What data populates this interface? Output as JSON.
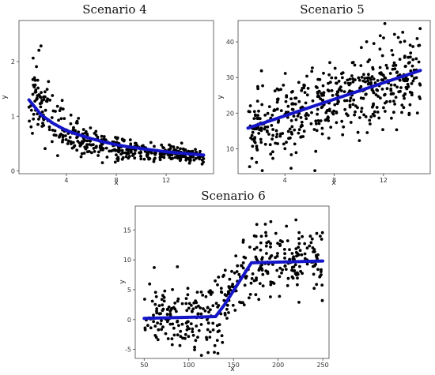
{
  "chart_data": [
    {
      "type": "scatter",
      "title": "Scenario 4",
      "xlabel": "x",
      "ylabel": "y",
      "xlim": [
        0.2,
        15.8
      ],
      "ylim": [
        -0.05,
        2.75
      ],
      "xticks": [
        4,
        8,
        12
      ],
      "yticks": [
        0,
        1,
        2
      ],
      "grid": false,
      "legend": "none",
      "point_color": "#000000",
      "fit_color": "#1515c8",
      "fit_line": {
        "x": [
          1,
          2,
          3,
          4,
          5,
          6,
          7,
          8,
          9,
          10,
          11,
          12,
          13,
          14,
          15
        ],
        "y": [
          1.3,
          1.02,
          0.86,
          0.74,
          0.66,
          0.59,
          0.53,
          0.48,
          0.44,
          0.41,
          0.38,
          0.35,
          0.33,
          0.31,
          0.29
        ]
      },
      "points": {
        "n": 420,
        "model": "exp",
        "x_range": [
          1,
          15
        ],
        "base": 0.25,
        "amp": 1.2,
        "rate": 0.28,
        "noise": 0.3,
        "seed": 11
      }
    },
    {
      "type": "scatter",
      "title": "Scenario 5",
      "xlabel": "x",
      "ylabel": "y",
      "xlim": [
        0.2,
        15.8
      ],
      "ylim": [
        3,
        46
      ],
      "xticks": [
        4,
        8,
        12
      ],
      "yticks": [
        10,
        20,
        30,
        40
      ],
      "grid": false,
      "legend": "none",
      "point_color": "#000000",
      "fit_color": "#1515c8",
      "fit_line": {
        "x": [
          1,
          15
        ],
        "y": [
          15.8,
          32.0
        ]
      },
      "points": {
        "n": 500,
        "model": "linear",
        "x_range": [
          1,
          15
        ],
        "intercept": 14.6,
        "slope": 1.16,
        "noise": 5.2,
        "seed": 23
      }
    },
    {
      "type": "scatter",
      "title": "Scenario 6",
      "xlabel": "x",
      "ylabel": "y",
      "xlim": [
        40,
        257
      ],
      "ylim": [
        -6.5,
        19
      ],
      "xticks": [
        50,
        100,
        150,
        200,
        250
      ],
      "yticks": [
        -5,
        0,
        5,
        10,
        15
      ],
      "grid": false,
      "legend": "none",
      "point_color": "#000000",
      "fit_color": "#1515c8",
      "fit_line": {
        "x": [
          50,
          130,
          140,
          170,
          250
        ],
        "y": [
          0.2,
          0.5,
          2.5,
          9.5,
          9.8
        ]
      },
      "points": {
        "n": 400,
        "model": "piecewise",
        "x_range": [
          50,
          250
        ],
        "noise": 2.8,
        "seed": 37
      }
    }
  ]
}
